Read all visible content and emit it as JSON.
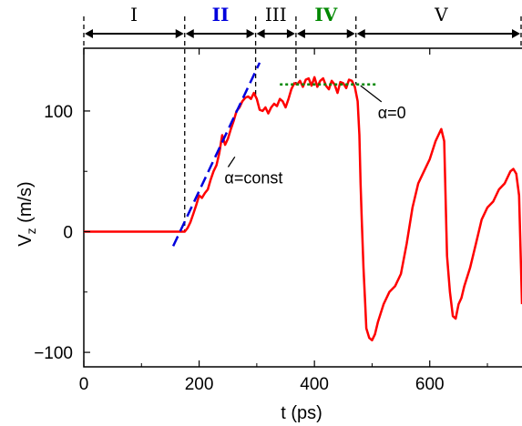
{
  "chart_data": {
    "type": "line",
    "title": "",
    "xlabel": "t (ps)",
    "ylabel": "V_z (m/s)",
    "ylabel_main": "V",
    "ylabel_sub": "z",
    "ylabel_units": " (m/s)",
    "xlim": [
      0,
      760
    ],
    "ylim": [
      -112,
      152
    ],
    "xticks": [
      0,
      200,
      400,
      600
    ],
    "yticks": [
      -100,
      0,
      100
    ],
    "xtick_labels": [
      "0",
      "200",
      "400",
      "600"
    ],
    "ytick_labels": [
      "−100",
      "0",
      "100"
    ],
    "grid": false,
    "series": [
      {
        "color": "#ff0000",
        "x": [
          0,
          170,
          175,
          180,
          185,
          190,
          195,
          200,
          205,
          210,
          215,
          220,
          225,
          230,
          235,
          240,
          245,
          250,
          255,
          260,
          265,
          270,
          275,
          280,
          285,
          290,
          295,
          300,
          305,
          310,
          315,
          320,
          325,
          330,
          335,
          340,
          345,
          350,
          355,
          360,
          365,
          370,
          375,
          380,
          385,
          390,
          395,
          400,
          405,
          410,
          415,
          420,
          425,
          430,
          435,
          440,
          445,
          450,
          455,
          460,
          465,
          470,
          475,
          478,
          480,
          482,
          485,
          488,
          490,
          495,
          500,
          505,
          510,
          520,
          530,
          540,
          550,
          560,
          570,
          580,
          590,
          600,
          610,
          615,
          620,
          625,
          630,
          635,
          640,
          645,
          650,
          655,
          660,
          670,
          680,
          690,
          700,
          710,
          720,
          730,
          740,
          745,
          750,
          755,
          760
        ],
        "y": [
          0,
          0,
          0,
          3,
          8,
          15,
          22,
          30,
          28,
          32,
          35,
          43,
          50,
          55,
          65,
          80,
          72,
          77,
          85,
          92,
          100,
          103,
          108,
          111,
          112,
          110,
          115,
          110,
          101,
          100,
          103,
          98,
          103,
          106,
          104,
          110,
          108,
          103,
          110,
          118,
          123,
          122,
          125,
          120,
          126,
          127,
          121,
          128,
          120,
          125,
          127,
          121,
          118,
          125,
          122,
          115,
          124,
          123,
          119,
          126,
          125,
          120,
          108,
          80,
          40,
          10,
          -30,
          -60,
          -80,
          -88,
          -90,
          -85,
          -75,
          -60,
          -50,
          -45,
          -35,
          -10,
          20,
          40,
          50,
          60,
          75,
          80,
          85,
          75,
          -20,
          -50,
          -70,
          -72,
          -60,
          -55,
          -45,
          -30,
          -10,
          10,
          20,
          25,
          35,
          40,
          50,
          52,
          48,
          30,
          -60
        ]
      },
      {
        "color": "#0000dd",
        "style": "dashed",
        "x": [
          155,
          305
        ],
        "y": [
          -12,
          140
        ]
      },
      {
        "color": "#008800",
        "style": "dotted",
        "x": [
          340,
          510
        ],
        "y": [
          122,
          122
        ]
      }
    ],
    "boundaries": [
      175,
      298,
      368,
      472
    ],
    "regions": [
      {
        "label": "I",
        "x": 87,
        "color": "#000000"
      },
      {
        "label": "II",
        "x": 237,
        "color": "#0000dd"
      },
      {
        "label": "III",
        "x": 333,
        "color": "#000000"
      },
      {
        "label": "IV",
        "x": 420,
        "color": "#008800"
      },
      {
        "label": "V",
        "x": 620,
        "color": "#000000"
      }
    ],
    "annotations": [
      {
        "text": "α=const",
        "x": 244,
        "y": 40,
        "arrow_to": [
          262,
          62
        ]
      },
      {
        "text": "α=0",
        "x": 510,
        "y": 94,
        "arrow_to": [
          480,
          121
        ]
      }
    ]
  }
}
